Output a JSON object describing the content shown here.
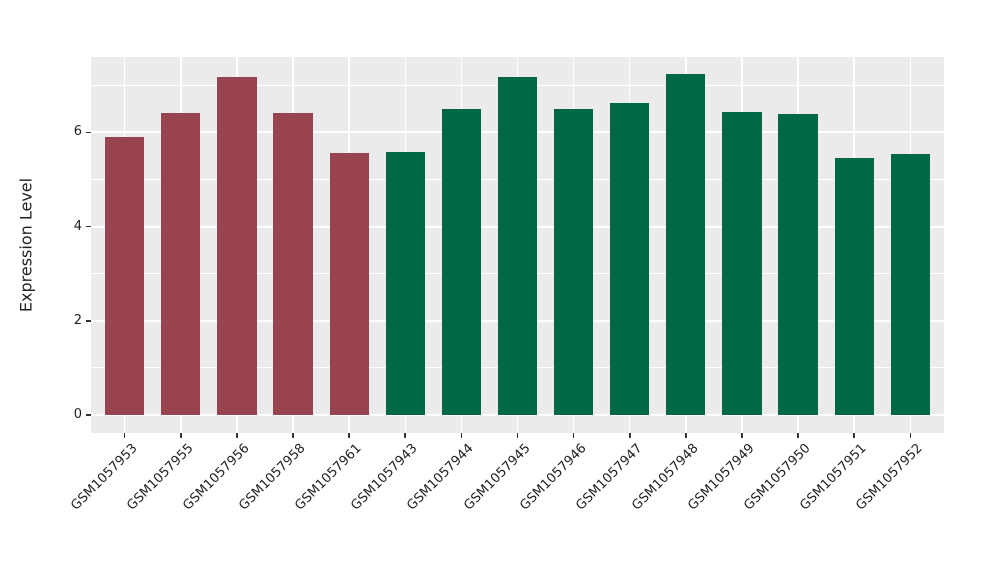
{
  "figure": {
    "background_color": "#FFFFFF"
  },
  "chart_data": {
    "type": "bar",
    "title": "",
    "xlabel": "",
    "ylabel": "Expression Level",
    "categories": [
      "GSM1057953",
      "GSM1057955",
      "GSM1057956",
      "GSM1057958",
      "GSM1057961",
      "GSM1057943",
      "GSM1057944",
      "GSM1057945",
      "GSM1057946",
      "GSM1057947",
      "GSM1057948",
      "GSM1057949",
      "GSM1057950",
      "GSM1057951",
      "GSM1057952"
    ],
    "values": [
      5.91,
      6.41,
      7.17,
      6.42,
      5.56,
      5.59,
      6.5,
      7.18,
      6.49,
      6.63,
      7.24,
      6.44,
      6.39,
      5.45,
      5.54
    ],
    "groups": [
      "A",
      "A",
      "A",
      "A",
      "A",
      "B",
      "B",
      "B",
      "B",
      "B",
      "B",
      "B",
      "B",
      "B",
      "B"
    ],
    "group_colors": {
      "A": "#9A4350",
      "B": "#016845"
    },
    "ylim": [
      -0.38,
      7.6
    ],
    "yticks_major": [
      0,
      2,
      4,
      6
    ],
    "yticks_minor": [
      1,
      3,
      5,
      7
    ],
    "grid": "on",
    "legend_position": "none",
    "panel_background": "#EBEBEB",
    "grid_color": "#FFFFFF",
    "axis_text_color": "#1F1F1F",
    "tick_mark_color": "#333333",
    "bar_width_fraction": 0.7,
    "x_expand_units": 0.6,
    "x_tick_label_angle_deg": 45
  }
}
